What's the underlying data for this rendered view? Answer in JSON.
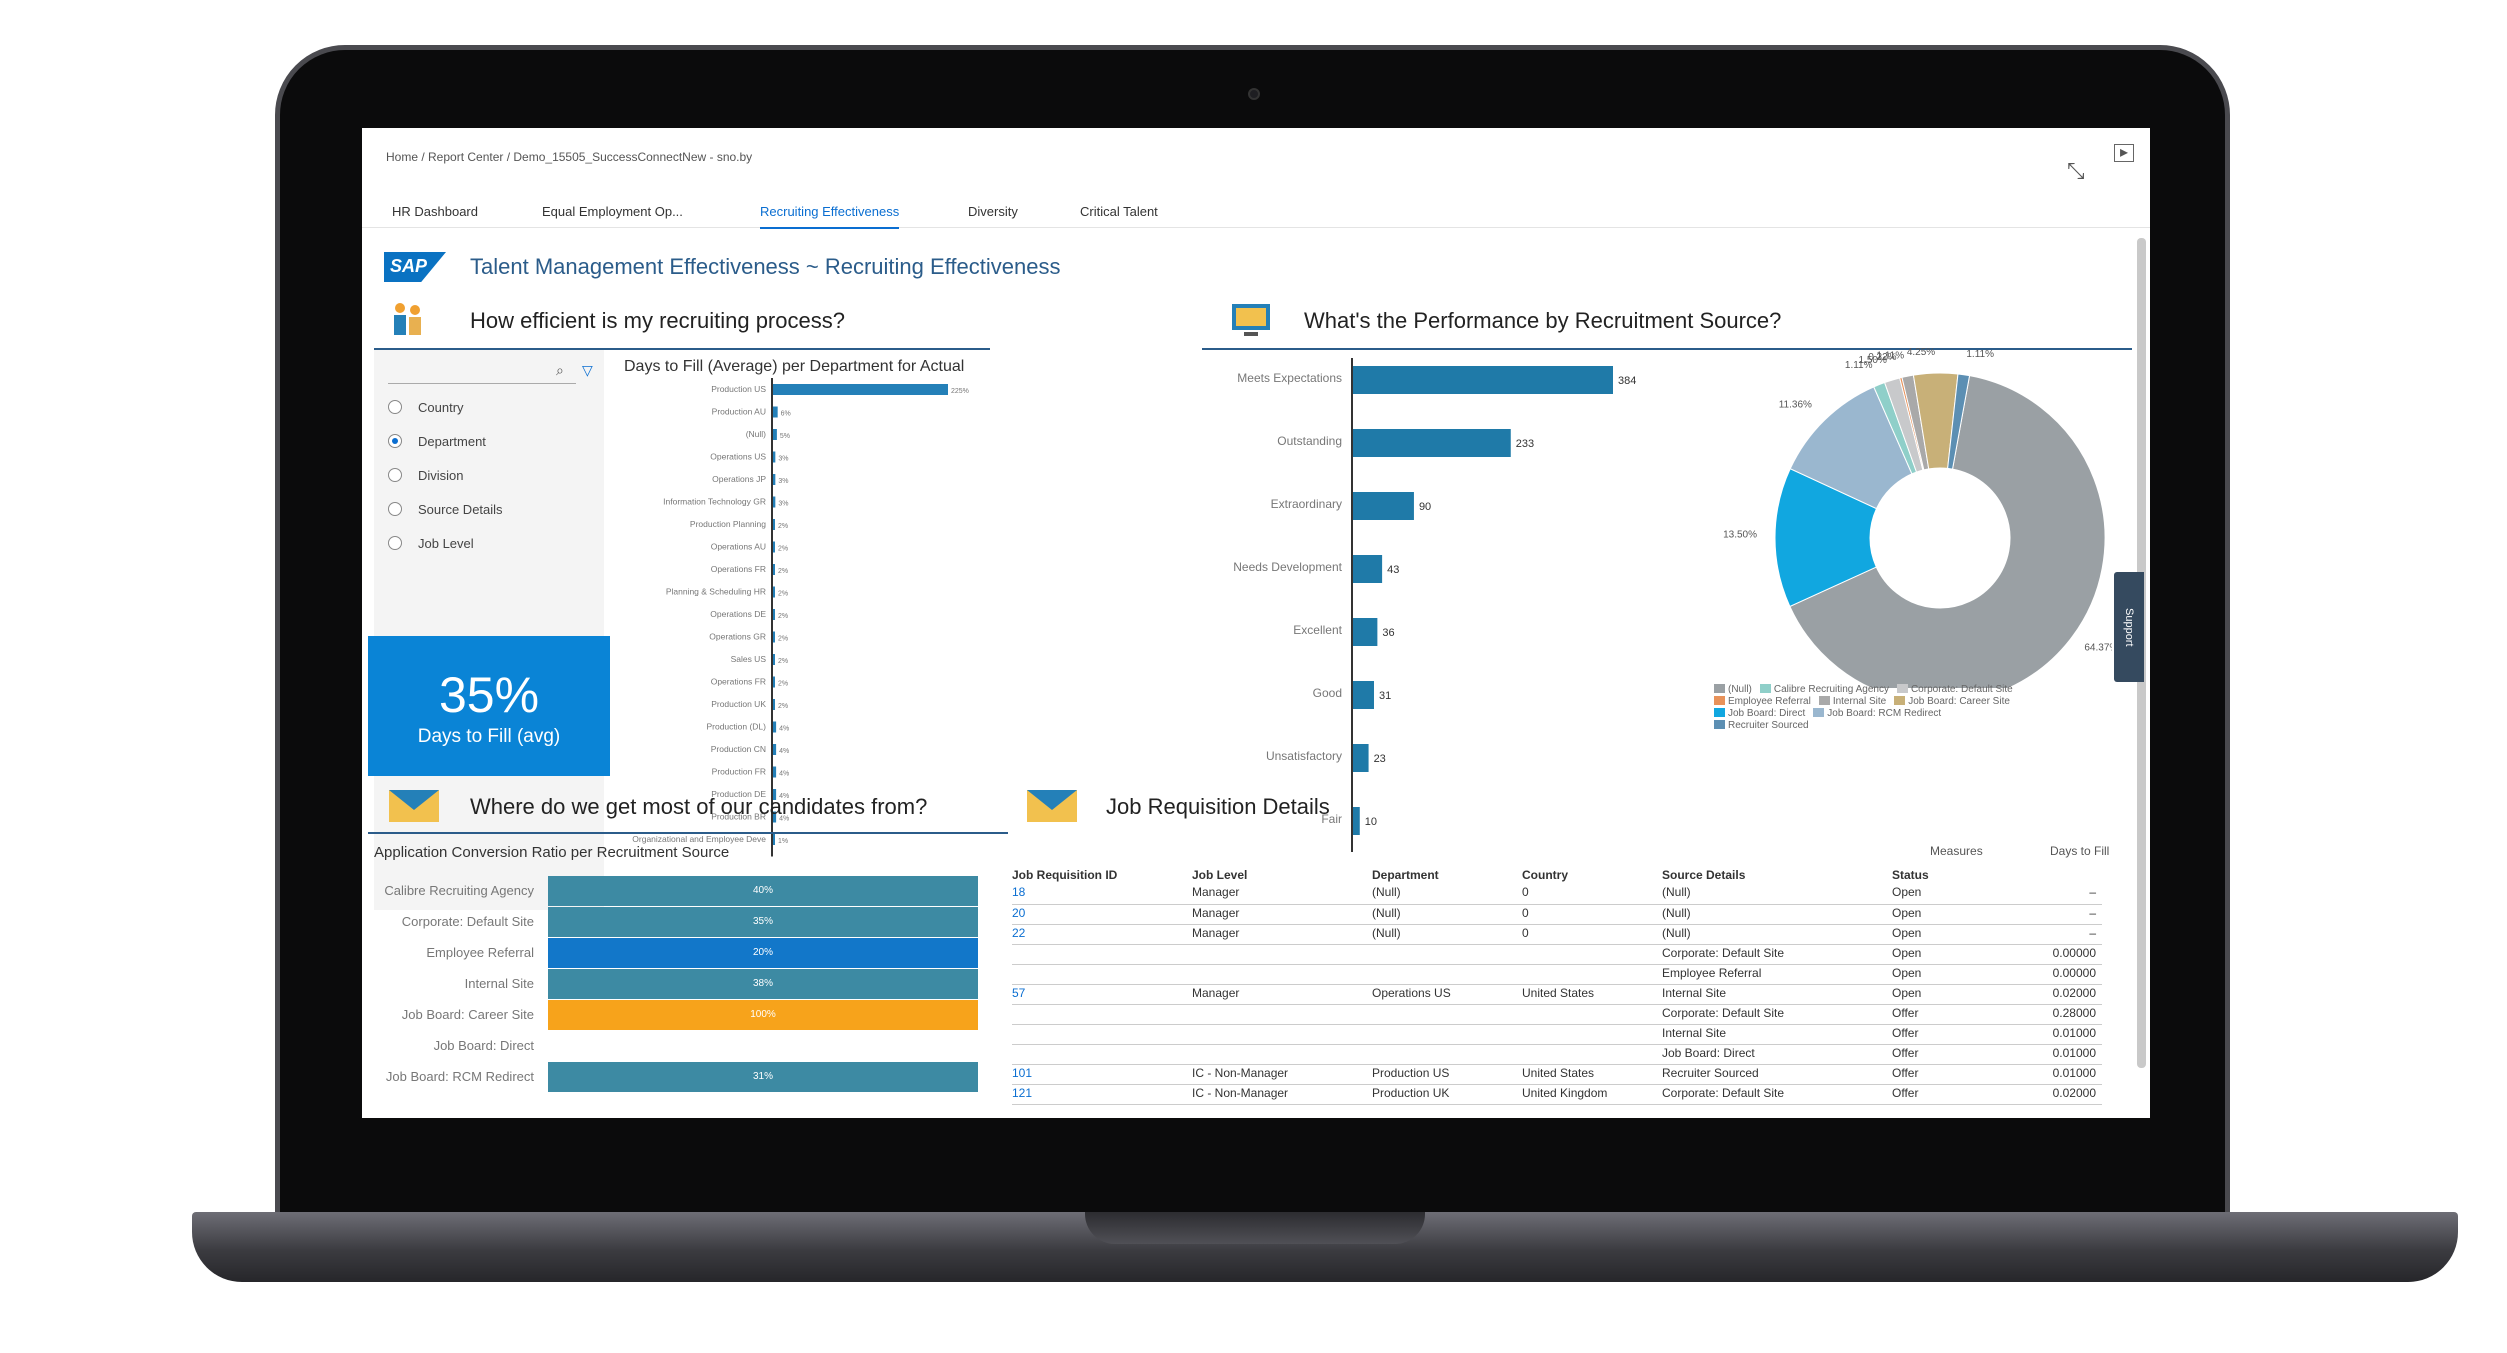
{
  "breadcrumb": "Home / Report Center / Demo_15505_SuccessConnectNew - sno.by",
  "tabs": [
    {
      "label": "HR Dashboard",
      "selected": false
    },
    {
      "label": "Equal Employment Op...",
      "selected": false
    },
    {
      "label": "Recruiting Effectiveness",
      "selected": true
    },
    {
      "label": "Diversity",
      "selected": false
    },
    {
      "label": "Critical Talent",
      "selected": false
    }
  ],
  "logo_text": "SAP",
  "main_title": "Talent Management Effectiveness ~ Recruiting Effectiveness",
  "sections": {
    "efficiency": "How efficient is my recruiting process?",
    "performance": "What's the Performance by Recruitment Source?",
    "candidates": "Where do we get most of our candidates from?",
    "requisitions": "Job Requisition Details"
  },
  "filter": {
    "search_placeholder": "",
    "options": [
      {
        "label": "Country",
        "checked": false
      },
      {
        "label": "Department",
        "checked": true
      },
      {
        "label": "Division",
        "checked": false
      },
      {
        "label": "Source Details",
        "checked": false
      },
      {
        "label": "Job Level",
        "checked": false
      }
    ]
  },
  "kpi": {
    "value": "35%",
    "label": "Days to Fill (avg)"
  },
  "support_tab": "Support",
  "chart_data": [
    {
      "type": "bar",
      "orientation": "horizontal",
      "title": "Days to Fill (Average) per Department for Actual",
      "categories": [
        "Production US",
        "Production AU",
        "(Null)",
        "Operations US",
        "Operations JP",
        "Information Technology GR",
        "Production Planning",
        "Operations AU",
        "Operations FR",
        "Planning & Scheduling HR",
        "Operations DE",
        "Operations GR",
        "Sales US",
        "Operations FR",
        "Production UK",
        "Production (DL)",
        "Production CN",
        "Production FR",
        "Production DE",
        "Production BR",
        "Organizational and Employee Deve"
      ],
      "values": [
        225,
        6,
        5,
        3,
        3,
        3,
        2,
        2,
        2,
        2,
        2,
        2,
        2,
        2,
        2,
        4,
        4,
        4,
        4,
        4,
        1
      ],
      "value_labels": [
        "225%",
        "6%",
        "5%",
        "3%",
        "3%",
        "3%",
        "2%",
        "2%",
        "2%",
        "2%",
        "2%",
        "2%",
        "2%",
        "2%",
        "2%",
        "4%",
        "4%",
        "4%",
        "4%",
        "4%",
        "1%"
      ],
      "color": "#2480b8"
    },
    {
      "type": "bar",
      "orientation": "horizontal",
      "title": "",
      "categories": [
        "Meets Expectations",
        "Outstanding",
        "Extraordinary",
        "Needs Development",
        "Excellent",
        "Good",
        "Unsatisfactory",
        "Fair"
      ],
      "values": [
        384,
        233,
        90,
        43,
        36,
        31,
        23,
        10
      ],
      "color": "#1f7aa8"
    },
    {
      "type": "pie",
      "variant": "donut",
      "slices": [
        {
          "label": "(Null)",
          "value": 64.37,
          "text": "64.37%",
          "color": "#9aa0a4"
        },
        {
          "label": "Calibre Recruiting Agency",
          "value": 1.11,
          "text": "1.11%",
          "color": "#8fcfc9"
        },
        {
          "label": "Corporate: Default Site",
          "value": 1.5,
          "text": "1.50%",
          "color": "#c8c9cb"
        },
        {
          "label": "Employee Referral",
          "value": 0.22,
          "text": "0.22%",
          "color": "#e8925a"
        },
        {
          "label": "Internal Site",
          "value": 1.11,
          "text": "1.11%",
          "color": "#a9a9a9"
        },
        {
          "label": "Job Board: Career Site",
          "value": 4.25,
          "text": "4.25%",
          "color": "#c8b078"
        },
        {
          "label": "Job Board: Direct",
          "value": 13.5,
          "text": "13.50%",
          "color": "#11a7e0"
        },
        {
          "label": "Job Board: RCM Redirect",
          "value": 11.36,
          "text": "11.36%",
          "color": "#9ab7cf"
        },
        {
          "label": "Recruiter Sourced",
          "value": 1.11,
          "text": "1.11%",
          "color": "#5c8fb3"
        }
      ]
    },
    {
      "type": "bar",
      "orientation": "horizontal",
      "title": "Application Conversion Ratio per Recruitment Source",
      "categories": [
        "Calibre Recruiting Agency",
        "Corporate: Default Site",
        "Employee Referral",
        "Internal Site",
        "Job Board: Career Site",
        "Job Board: Direct",
        "Job Board: RCM Redirect"
      ],
      "values": [
        40,
        35,
        20,
        38,
        100,
        null,
        31
      ],
      "value_labels": [
        "40%",
        "35%",
        "20%",
        "38%",
        "100%",
        "",
        "31%"
      ],
      "colors": [
        "#3d8aa3",
        "#3d8aa3",
        "#1277c9",
        "#3d8aa3",
        "#f7a31b",
        "",
        "#3d8aa3"
      ]
    }
  ],
  "requisition_table": {
    "measures_label": "Measures",
    "days_to_fill_label": "Days to Fill",
    "columns": [
      "Job Requisition ID",
      "Job Level",
      "Department",
      "Country",
      "Source Details",
      "Status",
      ""
    ],
    "rows": [
      [
        "18",
        "Manager",
        "(Null)",
        "0",
        "(Null)",
        "Open",
        "–"
      ],
      [
        "20",
        "Manager",
        "(Null)",
        "0",
        "(Null)",
        "Open",
        "–"
      ],
      [
        "22",
        "Manager",
        "(Null)",
        "0",
        "(Null)",
        "Open",
        "–"
      ],
      [
        "",
        "",
        "",
        "",
        "Corporate: Default Site",
        "Open",
        "0.00000"
      ],
      [
        "",
        "",
        "",
        "",
        "Employee Referral",
        "Open",
        "0.00000"
      ],
      [
        "57",
        "Manager",
        "Operations US",
        "United States",
        "Internal Site",
        "Open",
        "0.02000"
      ],
      [
        "",
        "",
        "",
        "",
        "Corporate: Default Site",
        "Offer",
        "0.28000"
      ],
      [
        "",
        "",
        "",
        "",
        "Internal Site",
        "Offer",
        "0.01000"
      ],
      [
        "",
        "",
        "",
        "",
        "Job Board: Direct",
        "Offer",
        "0.01000"
      ],
      [
        "101",
        "IC - Non-Manager",
        "Production US",
        "United States",
        "Recruiter Sourced",
        "Offer",
        "0.01000"
      ],
      [
        "121",
        "IC - Non-Manager",
        "Production UK",
        "United Kingdom",
        "Corporate: Default Site",
        "Offer",
        "0.02000"
      ]
    ]
  }
}
